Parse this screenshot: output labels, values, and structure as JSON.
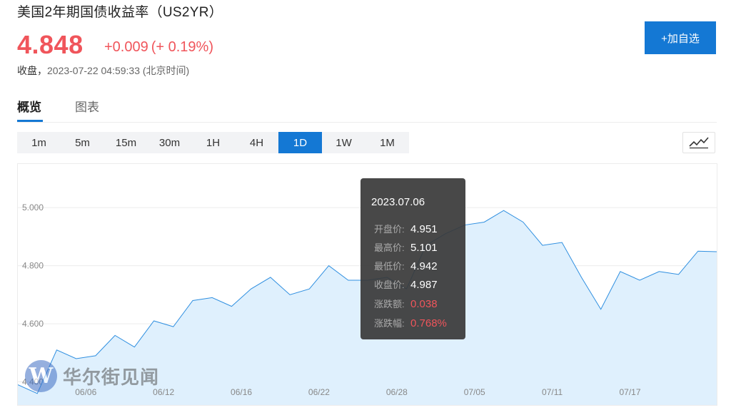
{
  "header": {
    "title": "美国2年期国债收益率（US2YR）",
    "price": "4.848",
    "change": "+0.009",
    "change_pct": "(+ 0.19%)",
    "close_label": "收盘，",
    "close_time": "2023-07-22 04:59:33 (北京时间)",
    "add_button": "+加自选"
  },
  "tabs": [
    {
      "label": "概览",
      "active": true
    },
    {
      "label": "图表",
      "active": false
    }
  ],
  "periods": [
    {
      "label": "1m",
      "active": false
    },
    {
      "label": "5m",
      "active": false
    },
    {
      "label": "15m",
      "active": false
    },
    {
      "label": "30m",
      "active": false
    },
    {
      "label": "1H",
      "active": false
    },
    {
      "label": "4H",
      "active": false
    },
    {
      "label": "1D",
      "active": true
    },
    {
      "label": "1W",
      "active": false
    },
    {
      "label": "1M",
      "active": false
    }
  ],
  "chart_type_icon": "line-chart-icon",
  "tooltip": {
    "date": "2023.07.06",
    "rows": [
      {
        "key": "开盘价:",
        "value": "4.951",
        "red": false
      },
      {
        "key": "最高价:",
        "value": "5.101",
        "red": false
      },
      {
        "key": "最低价:",
        "value": "4.942",
        "red": false
      },
      {
        "key": "收盘价:",
        "value": "4.987",
        "red": false
      },
      {
        "key": "涨跌额:",
        "value": "0.038",
        "red": true
      },
      {
        "key": "涨跌幅:",
        "value": "0.768%",
        "red": true
      }
    ]
  },
  "watermark": {
    "logo": "W",
    "text": "华尔街见闻"
  },
  "colors": {
    "accent": "#1478d4",
    "up": "#f0555b",
    "line": "#2f8fe0",
    "fill": "#dff0fd"
  },
  "chart_data": {
    "type": "area",
    "ylim": [
      4.34,
      5.15
    ],
    "yticks": [
      "5.000",
      "4.800",
      "4.600",
      "4.400"
    ],
    "ytick_values": [
      5.0,
      4.8,
      4.6,
      4.4
    ],
    "xticks": [
      "06/06",
      "06/12",
      "06/16",
      "06/22",
      "06/28",
      "07/05",
      "07/11",
      "07/17"
    ],
    "xtick_index": [
      3.5,
      7.5,
      11.5,
      15.5,
      19.5,
      23.5,
      27.5,
      31.5
    ],
    "values": [
      4.39,
      4.36,
      4.51,
      4.48,
      4.49,
      4.56,
      4.52,
      4.61,
      4.59,
      4.68,
      4.69,
      4.66,
      4.72,
      4.76,
      4.7,
      4.72,
      4.8,
      4.75,
      4.75,
      4.76,
      4.72,
      4.87,
      4.91,
      4.94,
      4.95,
      4.99,
      4.95,
      4.87,
      4.88,
      4.76,
      4.65,
      4.78,
      4.75,
      4.78,
      4.77,
      4.85,
      4.848
    ]
  }
}
